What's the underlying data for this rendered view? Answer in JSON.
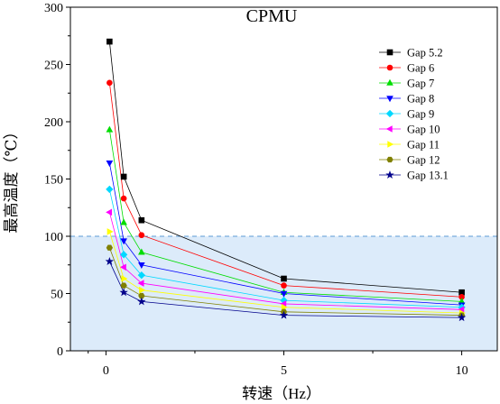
{
  "chart_data": {
    "type": "line",
    "title": "CPMU",
    "xlabel": "转速（Hz）",
    "ylabel": "最高温度（℃）",
    "xlim": [
      -1,
      11
    ],
    "ylim": [
      0,
      300
    ],
    "xticks": [
      0,
      5,
      10
    ],
    "yticks": [
      0,
      50,
      100,
      150,
      200,
      250,
      300
    ],
    "x": [
      0.1,
      0.5,
      1,
      5,
      10
    ],
    "threshold": {
      "value": 100,
      "color": "#5b9bd5",
      "style": "dashed",
      "fill": "#dcebfa"
    },
    "grid": false,
    "legend_position": "top-right",
    "series": [
      {
        "name": "Gap 5.2",
        "values": [
          270,
          152,
          114,
          63,
          51
        ],
        "color": "#000000",
        "marker": "square"
      },
      {
        "name": "Gap 6",
        "values": [
          234,
          133,
          101,
          57,
          47
        ],
        "color": "#ff0000",
        "marker": "circle"
      },
      {
        "name": "Gap 7",
        "values": [
          193,
          112,
          86,
          51,
          43
        ],
        "color": "#00dd00",
        "marker": "triangle-up"
      },
      {
        "name": "Gap 8",
        "values": [
          164,
          96,
          75,
          50,
          40
        ],
        "color": "#0000ff",
        "marker": "triangle-down"
      },
      {
        "name": "Gap 9",
        "values": [
          141,
          84,
          66,
          44,
          38
        ],
        "color": "#00d8ff",
        "marker": "diamond"
      },
      {
        "name": "Gap 10",
        "values": [
          121,
          73,
          59,
          41,
          36
        ],
        "color": "#ff00ff",
        "marker": "triangle-left"
      },
      {
        "name": "Gap 11",
        "values": [
          104,
          63,
          53,
          38,
          33
        ],
        "color": "#ffff00",
        "marker": "triangle-right"
      },
      {
        "name": "Gap 12",
        "values": [
          90,
          57,
          48,
          34,
          31
        ],
        "color": "#808000",
        "marker": "hexagon"
      },
      {
        "name": "Gap 13.1",
        "values": [
          78,
          51,
          43,
          31,
          29
        ],
        "color": "#00008b",
        "marker": "star"
      }
    ]
  }
}
